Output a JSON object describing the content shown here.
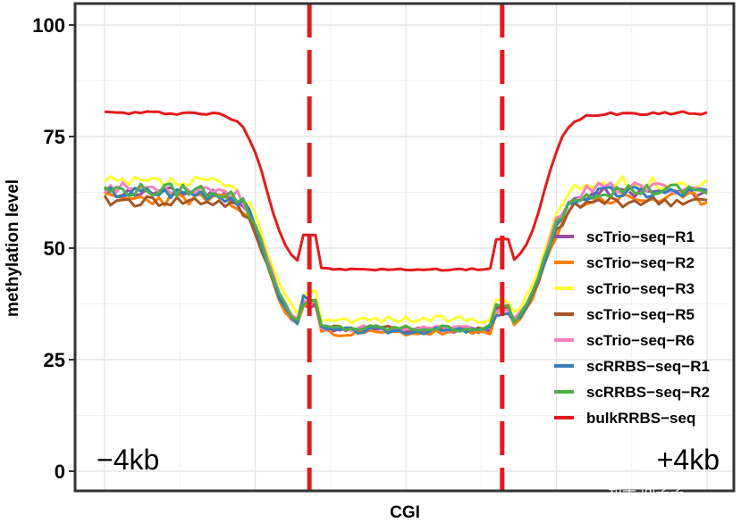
{
  "chart_data": {
    "type": "line",
    "title": "",
    "xlabel": "CGI",
    "ylabel": "methylation level",
    "ylim": [
      0,
      104
    ],
    "yticks": [
      "0",
      "25",
      "50",
      "75",
      "100"
    ],
    "ytick_values": [
      0,
      25,
      50,
      75,
      100
    ],
    "x_range": [
      0,
      100
    ],
    "cgi_boundaries": [
      34,
      66
    ],
    "region_labels": {
      "left": "−4kb",
      "right": "+4kb"
    },
    "grid": true,
    "legend_position": "right",
    "series": [
      {
        "name": "scTrio−seq−R1",
        "color": "#984EA3",
        "jitter": 1.2,
        "seed": 11,
        "flank": 62.5,
        "core": 31.5,
        "edge_in": 37,
        "edge_out": 36.5
      },
      {
        "name": "scTrio−seq−R2",
        "color": "#FF7F00",
        "jitter": 1.5,
        "seed": 23,
        "flank": 61,
        "core": 31,
        "edge_in": 37.5,
        "edge_out": 36
      },
      {
        "name": "scTrio−seq−R3",
        "color": "#FFFF33",
        "jitter": 1.6,
        "seed": 37,
        "flank": 64.5,
        "core": 34,
        "edge_in": 40,
        "edge_out": 38
      },
      {
        "name": "scTrio−seq−R5",
        "color": "#A65628",
        "jitter": 1.3,
        "seed": 41,
        "flank": 60.5,
        "core": 32,
        "edge_in": 38,
        "edge_out": 37
      },
      {
        "name": "scTrio−seq−R6",
        "color": "#F781BF",
        "jitter": 1.3,
        "seed": 53,
        "flank": 63.5,
        "core": 32,
        "edge_in": 38,
        "edge_out": 36
      },
      {
        "name": "scRRBS−seq−R1",
        "color": "#377EB8",
        "jitter": 1.5,
        "seed": 67,
        "flank": 62.5,
        "core": 31.5,
        "edge_in": 39,
        "edge_out": 35.5
      },
      {
        "name": "scRRBS−seq−R2",
        "color": "#4DAF4A",
        "jitter": 1.5,
        "seed": 79,
        "flank": 63,
        "core": 32,
        "edge_in": 38,
        "edge_out": 37
      },
      {
        "name": "bulkRRBS−seq",
        "color": "#E41A1C",
        "jitter": 0.4,
        "seed": 97,
        "flank": 80.3,
        "core": 45.2,
        "edge_in": 53,
        "edge_out": 52
      }
    ]
  },
  "watermark": "知乎 @学学"
}
